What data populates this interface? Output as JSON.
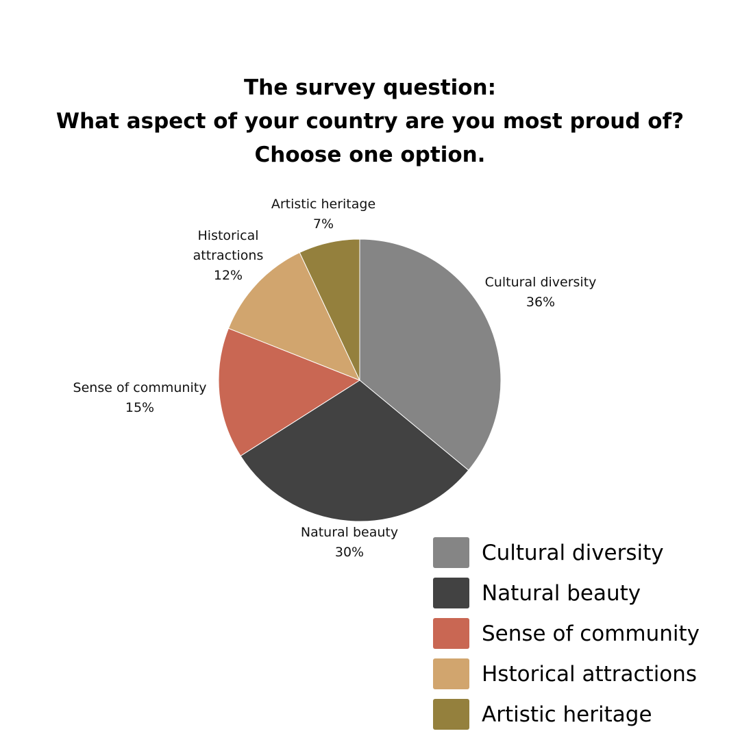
{
  "title_lines": [
    "The survey question:",
    "What aspect of your country are you most proud of?",
    "Choose one option."
  ],
  "chart_data": {
    "type": "pie",
    "slices": [
      {
        "label": [
          "Cultural diversity"
        ],
        "value": 36,
        "value_label": "36%",
        "color": "#858585"
      },
      {
        "label": [
          "Natural beauty"
        ],
        "value": 30,
        "value_label": "30%",
        "color": "#424242"
      },
      {
        "label": [
          "Sense of community"
        ],
        "value": 15,
        "value_label": "15%",
        "color": "#c96753"
      },
      {
        "label": [
          "Historical",
          "attractions"
        ],
        "value": 12,
        "value_label": "12%",
        "color": "#d1a56e"
      },
      {
        "label": [
          "Artistic heritage"
        ],
        "value": 7,
        "value_label": "7%",
        "color": "#94803d"
      }
    ],
    "start": "12 o'clock",
    "direction": "clockwise",
    "legend": {
      "position": "bottom-right",
      "entries": [
        {
          "label": "Cultural diversity",
          "color": "#858585"
        },
        {
          "label": "Natural beauty",
          "color": "#424242"
        },
        {
          "label": "Sense of community",
          "color": "#c96753"
        },
        {
          "label": "Hstorical attractions",
          "color": "#d1a56e"
        },
        {
          "label": "Artistic heritage",
          "color": "#94803d"
        }
      ]
    }
  }
}
